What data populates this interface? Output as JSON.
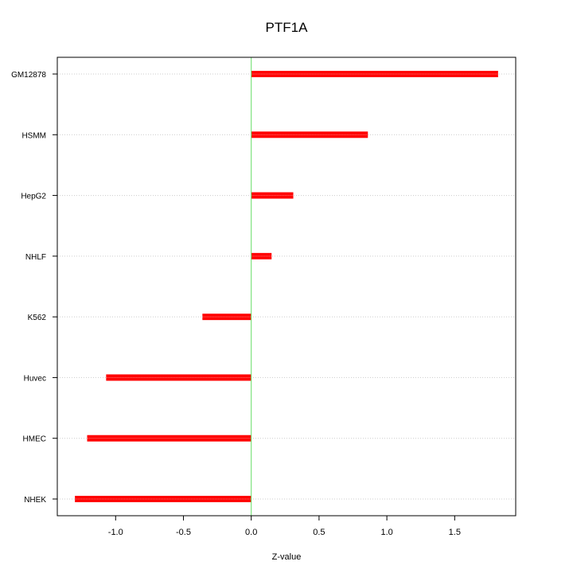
{
  "chart_data": {
    "type": "bar",
    "orientation": "horizontal",
    "title": "PTF1A",
    "xlabel": "Z-value",
    "ylabel": "",
    "categories": [
      "GM12878",
      "HSMM",
      "HepG2",
      "NHLF",
      "K562",
      "Huvec",
      "HMEC",
      "NHEK"
    ],
    "values": [
      1.82,
      0.86,
      0.31,
      0.15,
      -0.36,
      -1.07,
      -1.21,
      -1.3
    ],
    "xlim": [
      -1.43,
      1.95
    ],
    "x_ticks": [
      -1.0,
      -0.5,
      0.0,
      0.5,
      1.0,
      1.5
    ],
    "x_tick_labels": [
      "-1.0",
      "-0.5",
      "0.0",
      "0.5",
      "1.0",
      "1.5"
    ],
    "reference_line_x": 0,
    "grid": "horizontal-dotted",
    "colors": {
      "bar": "#ff0000",
      "bar_highlight": "#ff8080",
      "reference_line": "#66dd66",
      "grid": "#cccccc",
      "axis": "#000000"
    }
  }
}
